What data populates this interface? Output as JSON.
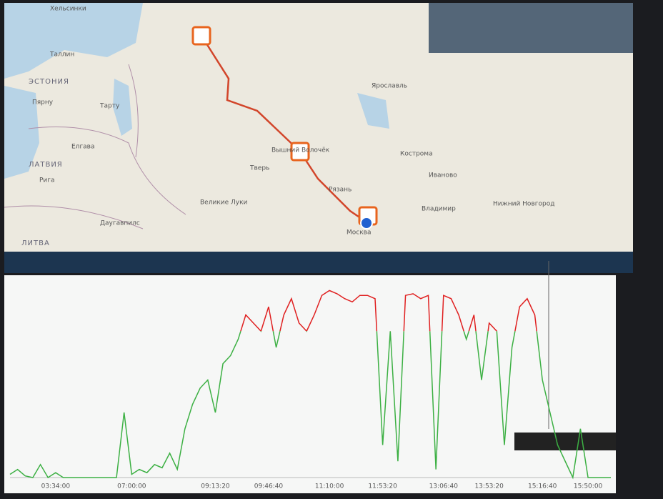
{
  "map": {
    "labels": [
      "Хельсинки",
      "Таллин",
      "ЭСТОНИЯ",
      "Пярну",
      "Тарту",
      "ЛАТВИЯ",
      "Рига",
      "Елгава",
      "ЛИТВА",
      "Великие Луки",
      "Даугавпилс",
      "Вышний Волочёк",
      "Тверь",
      "Ярославль",
      "Москва",
      "Кострома",
      "Иваново",
      "Владимир",
      "Рязань",
      "Нижний Новгород"
    ]
  },
  "chart_data": {
    "type": "line",
    "categories": [
      null,
      null,
      null,
      null,
      null,
      null,
      "03:34:00",
      null,
      null,
      null,
      null,
      null,
      null,
      null,
      null,
      null,
      "07:00:00",
      null,
      null,
      null,
      null,
      null,
      null,
      null,
      null,
      null,
      null,
      "09:13:20",
      null,
      null,
      null,
      null,
      null,
      null,
      "09:46:40",
      null,
      null,
      null,
      null,
      null,
      null,
      null,
      "11:10:00",
      null,
      null,
      null,
      null,
      null,
      null,
      "11:53:20",
      null,
      null,
      null,
      null,
      null,
      null,
      null,
      "13:06:40",
      null,
      null,
      null,
      null,
      null,
      "13:53:20",
      null,
      null,
      null,
      null,
      null,
      null,
      "15:16:40",
      null,
      null,
      null,
      null,
      null,
      "15:50:00",
      null,
      null,
      null
    ],
    "series": [
      {
        "color": "#3cb043",
        "over_color": "#e02020",
        "limit": 90,
        "values": [
          2,
          5,
          1,
          0,
          8,
          0,
          3,
          0,
          0,
          0,
          0,
          0,
          0,
          0,
          0,
          40,
          2,
          5,
          3,
          8,
          6,
          15,
          5,
          30,
          45,
          55,
          60,
          40,
          70,
          75,
          85,
          100,
          95,
          90,
          105,
          80,
          100,
          110,
          95,
          90,
          100,
          112,
          115,
          113,
          110,
          108,
          112,
          112,
          110,
          20,
          90,
          10,
          112,
          113,
          110,
          112,
          5,
          112,
          110,
          100,
          85,
          100,
          60,
          95,
          90,
          20,
          80,
          105,
          110,
          100,
          60,
          40,
          20,
          10,
          0,
          30,
          0,
          0,
          0,
          0
        ]
      }
    ],
    "ylim": [
      0,
      120
    ]
  }
}
